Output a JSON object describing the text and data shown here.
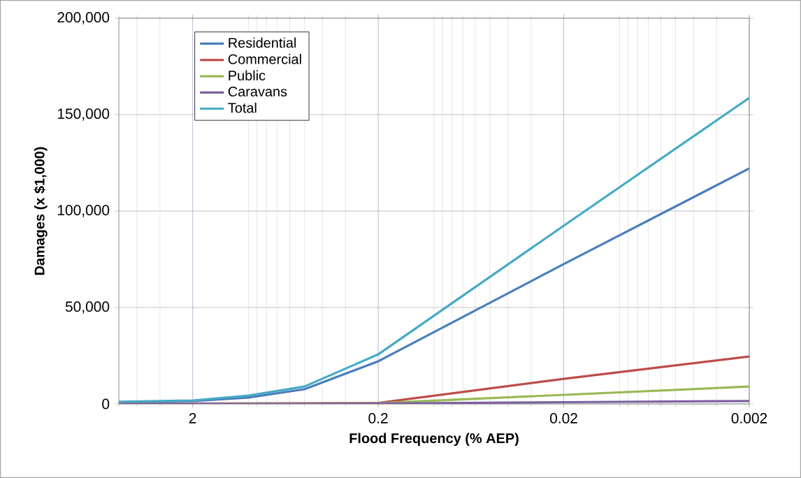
{
  "chart_data": {
    "type": "line",
    "xlabel": "Flood Frequency (% AEP)",
    "ylabel": "Damages (x $1,000)",
    "log": "x",
    "xlim": [
      5,
      0.002
    ],
    "ylim": [
      0,
      200000
    ],
    "xticks": [
      2,
      0.2,
      0.02,
      0.002
    ],
    "yticks": [
      0,
      {
        "value": 50000,
        "label": "50,000"
      },
      {
        "value": 100000,
        "label": "100,000"
      },
      {
        "value": 150000,
        "label": "150,000"
      },
      {
        "value": 200000,
        "label": "200,000"
      }
    ],
    "x": [
      5,
      2,
      1,
      0.5,
      0.2,
      0.02,
      0.002
    ],
    "grid": true,
    "legend": "top left",
    "marker": "none",
    "line_style": "solid",
    "series": [
      {
        "name": "Residential",
        "color": "#4a7ebb",
        "values": [
          900,
          1500,
          3300,
          7600,
          22100,
          72500,
          122100
        ]
      },
      {
        "name": "Commercial",
        "color": "#be4b48",
        "values": [
          100,
          200,
          200,
          300,
          500,
          13000,
          24600
        ]
      },
      {
        "name": "Public",
        "color": "#98b954",
        "values": [
          100,
          100,
          200,
          200,
          400,
          4700,
          9000
        ]
      },
      {
        "name": "Caravans",
        "color": "#7d60a0",
        "values": [
          100,
          100,
          100,
          100,
          200,
          900,
          1500
        ]
      },
      {
        "name": "Total",
        "color": "#46aac5",
        "values": [
          1100,
          1800,
          4300,
          9000,
          25700,
          92400,
          158700
        ]
      }
    ]
  }
}
